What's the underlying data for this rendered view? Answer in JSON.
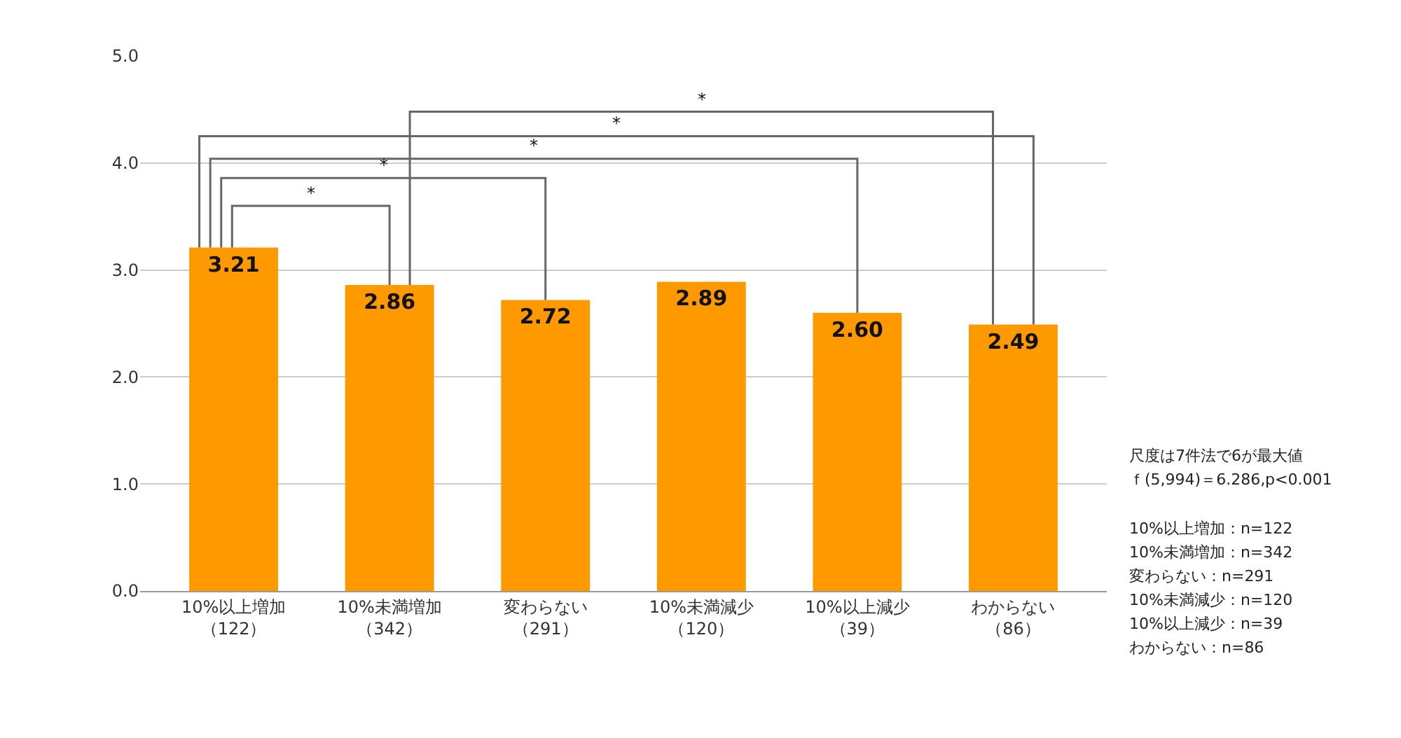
{
  "chart_data": {
    "type": "bar",
    "categories": [
      "10%以上増加（122）",
      "10%未満増加（342）",
      "変わらない（291）",
      "10%未満減少（120）",
      "10%以上減少（39）",
      "わからない（86）"
    ],
    "values": [
      3.21,
      2.86,
      2.72,
      2.89,
      2.6,
      2.49
    ],
    "value_labels": [
      "3.21",
      "2.86",
      "2.72",
      "2.89",
      "2.60",
      "2.49"
    ],
    "color": "#ff9900",
    "ylim": [
      0,
      5
    ],
    "yticks": [
      {
        "value": 0,
        "label": "0.0"
      },
      {
        "value": 1,
        "label": "1.0"
      },
      {
        "value": 2,
        "label": "2.0"
      },
      {
        "value": 3,
        "label": "3.0"
      },
      {
        "value": 4,
        "label": "4.0"
      },
      {
        "value": 5,
        "label": "5.0"
      }
    ],
    "grid": "y",
    "annotations": [
      "*",
      "*",
      "*",
      "*",
      "*",
      "尺度は7件法で6が最大値",
      "ｆ(5,994)＝6.286,p<0.001",
      "10%以上増加：n=122",
      "10%未満増加：n=342",
      "変わらない：n=291",
      "10%未満減少：n=120",
      "10%以上減少：n=39",
      "わからない：n=86"
    ]
  }
}
